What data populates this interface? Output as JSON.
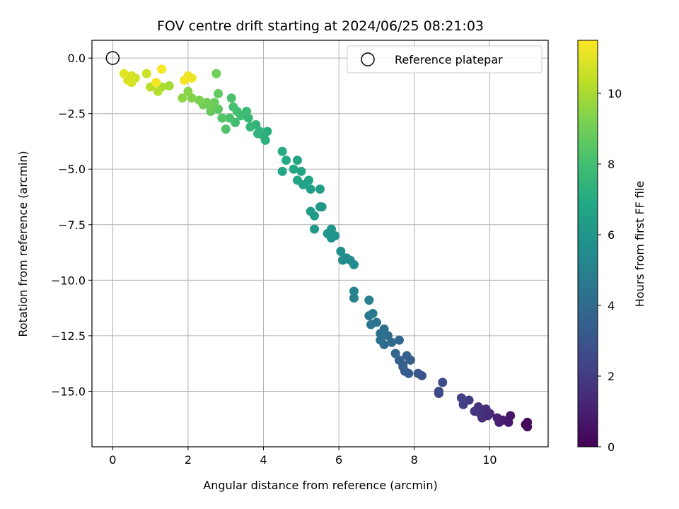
{
  "chart_data": {
    "type": "scatter",
    "title": "FOV centre drift starting at 2024/06/25 08:21:03",
    "xlabel": "Angular distance from reference (arcmin)",
    "ylabel": "Rotation from reference (arcmin)",
    "xlim": [
      -0.55,
      11.55
    ],
    "ylim": [
      -17.5,
      0.8
    ],
    "xticks": [
      0,
      2,
      4,
      6,
      8,
      10
    ],
    "xtick_labels": [
      "0",
      "2",
      "4",
      "6",
      "8",
      "10"
    ],
    "yticks": [
      0.0,
      -2.5,
      -5.0,
      -7.5,
      -10.0,
      -12.5,
      -15.0
    ],
    "ytick_labels": [
      "0.0",
      "−2.5",
      "−5.0",
      "−7.5",
      "−10.0",
      "−12.5",
      "−15.0"
    ],
    "grid": true,
    "legend": {
      "placement": "top-right",
      "entries": [
        "Reference platepar"
      ]
    },
    "reference_point": {
      "x": 0.0,
      "y": 0.0,
      "marker": "open-circle"
    },
    "colorbar": {
      "label": "Hours from first FF file",
      "colormap": "viridis",
      "range": [
        0,
        11.5
      ],
      "ticks": [
        0,
        2,
        4,
        6,
        8,
        10
      ],
      "tick_labels": [
        "0",
        "2",
        "4",
        "6",
        "8",
        "10"
      ]
    },
    "series": [
      {
        "note_colormap_by": "t",
        "points": [
          {
            "x": 0.3,
            "y": -0.7,
            "t": 11.0
          },
          {
            "x": 0.4,
            "y": -1.0,
            "t": 10.9
          },
          {
            "x": 0.5,
            "y": -1.1,
            "t": 10.8
          },
          {
            "x": 0.6,
            "y": -0.9,
            "t": 10.7
          },
          {
            "x": 0.5,
            "y": -0.8,
            "t": 10.8
          },
          {
            "x": 0.9,
            "y": -0.7,
            "t": 10.6
          },
          {
            "x": 1.0,
            "y": -1.3,
            "t": 10.3
          },
          {
            "x": 1.15,
            "y": -1.1,
            "t": 11.3
          },
          {
            "x": 1.2,
            "y": -1.5,
            "t": 10.2
          },
          {
            "x": 1.3,
            "y": -0.5,
            "t": 11.4
          },
          {
            "x": 1.3,
            "y": -1.3,
            "t": 10.1
          },
          {
            "x": 1.5,
            "y": -1.25,
            "t": 9.9
          },
          {
            "x": 1.9,
            "y": -1.0,
            "t": 11.3
          },
          {
            "x": 2.0,
            "y": -0.8,
            "t": 11.2
          },
          {
            "x": 2.1,
            "y": -0.9,
            "t": 11.2
          },
          {
            "x": 1.85,
            "y": -1.8,
            "t": 9.5
          },
          {
            "x": 2.0,
            "y": -1.5,
            "t": 9.4
          },
          {
            "x": 2.1,
            "y": -1.8,
            "t": 9.3
          },
          {
            "x": 2.3,
            "y": -1.9,
            "t": 9.2
          },
          {
            "x": 2.5,
            "y": -2.0,
            "t": 9.0
          },
          {
            "x": 2.6,
            "y": -2.2,
            "t": 8.9
          },
          {
            "x": 2.4,
            "y": -2.1,
            "t": 9.0
          },
          {
            "x": 2.7,
            "y": -2.0,
            "t": 8.8
          },
          {
            "x": 2.8,
            "y": -1.6,
            "t": 8.7
          },
          {
            "x": 2.75,
            "y": -0.7,
            "t": 9.0
          },
          {
            "x": 2.6,
            "y": -2.4,
            "t": 8.7
          },
          {
            "x": 2.8,
            "y": -2.3,
            "t": 8.6
          },
          {
            "x": 2.9,
            "y": -2.7,
            "t": 8.4
          },
          {
            "x": 3.0,
            "y": -3.2,
            "t": 8.3
          },
          {
            "x": 3.1,
            "y": -2.7,
            "t": 8.2
          },
          {
            "x": 3.15,
            "y": -1.8,
            "t": 8.2
          },
          {
            "x": 3.2,
            "y": -2.2,
            "t": 8.1
          },
          {
            "x": 3.3,
            "y": -2.4,
            "t": 8.0
          },
          {
            "x": 3.25,
            "y": -2.9,
            "t": 8.0
          },
          {
            "x": 3.4,
            "y": -2.6,
            "t": 7.9
          },
          {
            "x": 3.55,
            "y": -2.4,
            "t": 7.8
          },
          {
            "x": 3.6,
            "y": -2.7,
            "t": 7.7
          },
          {
            "x": 3.65,
            "y": -3.1,
            "t": 7.6
          },
          {
            "x": 3.8,
            "y": -3.0,
            "t": 7.5
          },
          {
            "x": 3.9,
            "y": -3.3,
            "t": 7.4
          },
          {
            "x": 4.0,
            "y": -3.5,
            "t": 7.3
          },
          {
            "x": 4.05,
            "y": -3.7,
            "t": 7.3
          },
          {
            "x": 4.1,
            "y": -3.3,
            "t": 7.2
          },
          {
            "x": 3.85,
            "y": -3.4,
            "t": 7.4
          },
          {
            "x": 4.5,
            "y": -4.2,
            "t": 7.0
          },
          {
            "x": 4.5,
            "y": -5.1,
            "t": 6.9
          },
          {
            "x": 4.6,
            "y": -4.6,
            "t": 6.9
          },
          {
            "x": 4.8,
            "y": -5.0,
            "t": 6.8
          },
          {
            "x": 4.9,
            "y": -4.6,
            "t": 6.8
          },
          {
            "x": 4.9,
            "y": -5.5,
            "t": 6.7
          },
          {
            "x": 5.0,
            "y": -5.1,
            "t": 6.7
          },
          {
            "x": 5.05,
            "y": -5.7,
            "t": 6.6
          },
          {
            "x": 5.2,
            "y": -5.5,
            "t": 6.6
          },
          {
            "x": 5.25,
            "y": -5.9,
            "t": 6.5
          },
          {
            "x": 5.5,
            "y": -5.9,
            "t": 6.4
          },
          {
            "x": 5.25,
            "y": -6.9,
            "t": 6.3
          },
          {
            "x": 5.35,
            "y": -7.1,
            "t": 6.3
          },
          {
            "x": 5.5,
            "y": -6.7,
            "t": 6.2
          },
          {
            "x": 5.55,
            "y": -6.7,
            "t": 6.2
          },
          {
            "x": 5.35,
            "y": -7.7,
            "t": 6.1
          },
          {
            "x": 5.7,
            "y": -7.9,
            "t": 6.0
          },
          {
            "x": 5.8,
            "y": -7.7,
            "t": 6.0
          },
          {
            "x": 5.8,
            "y": -8.1,
            "t": 5.9
          },
          {
            "x": 5.9,
            "y": -8.0,
            "t": 5.9
          },
          {
            "x": 6.05,
            "y": -8.7,
            "t": 5.7
          },
          {
            "x": 6.1,
            "y": -9.1,
            "t": 5.6
          },
          {
            "x": 6.3,
            "y": -9.1,
            "t": 5.5
          },
          {
            "x": 6.4,
            "y": -9.3,
            "t": 5.5
          },
          {
            "x": 6.2,
            "y": -9.0,
            "t": 5.6
          },
          {
            "x": 6.4,
            "y": -10.5,
            "t": 5.1
          },
          {
            "x": 6.4,
            "y": -10.8,
            "t": 5.0
          },
          {
            "x": 6.8,
            "y": -10.9,
            "t": 4.9
          },
          {
            "x": 6.8,
            "y": -11.6,
            "t": 4.6
          },
          {
            "x": 6.9,
            "y": -11.5,
            "t": 4.6
          },
          {
            "x": 6.85,
            "y": -12.0,
            "t": 4.5
          },
          {
            "x": 7.0,
            "y": -11.9,
            "t": 4.4
          },
          {
            "x": 7.1,
            "y": -12.4,
            "t": 4.3
          },
          {
            "x": 7.1,
            "y": -12.7,
            "t": 4.2
          },
          {
            "x": 7.2,
            "y": -12.2,
            "t": 4.2
          },
          {
            "x": 7.3,
            "y": -12.5,
            "t": 4.1
          },
          {
            "x": 7.2,
            "y": -12.9,
            "t": 4.1
          },
          {
            "x": 7.4,
            "y": -12.8,
            "t": 4.0
          },
          {
            "x": 7.5,
            "y": -13.3,
            "t": 3.8
          },
          {
            "x": 7.6,
            "y": -12.7,
            "t": 3.8
          },
          {
            "x": 7.6,
            "y": -13.6,
            "t": 3.6
          },
          {
            "x": 7.7,
            "y": -13.8,
            "t": 3.5
          },
          {
            "x": 7.75,
            "y": -14.1,
            "t": 3.4
          },
          {
            "x": 7.8,
            "y": -13.4,
            "t": 3.5
          },
          {
            "x": 7.9,
            "y": -13.6,
            "t": 3.4
          },
          {
            "x": 7.85,
            "y": -14.2,
            "t": 3.3
          },
          {
            "x": 8.1,
            "y": -14.2,
            "t": 3.1
          },
          {
            "x": 8.2,
            "y": -14.3,
            "t": 3.0
          },
          {
            "x": 7.7,
            "y": -13.9,
            "t": 3.5
          },
          {
            "x": 8.65,
            "y": -15.0,
            "t": 2.6
          },
          {
            "x": 8.75,
            "y": -14.6,
            "t": 2.6
          },
          {
            "x": 8.65,
            "y": -15.1,
            "t": 2.5
          },
          {
            "x": 9.25,
            "y": -15.3,
            "t": 2.2
          },
          {
            "x": 9.3,
            "y": -15.6,
            "t": 2.1
          },
          {
            "x": 9.45,
            "y": -15.4,
            "t": 2.0
          },
          {
            "x": 9.6,
            "y": -15.9,
            "t": 1.8
          },
          {
            "x": 9.7,
            "y": -15.7,
            "t": 1.7
          },
          {
            "x": 9.75,
            "y": -16.0,
            "t": 1.6
          },
          {
            "x": 9.8,
            "y": -16.2,
            "t": 1.5
          },
          {
            "x": 9.9,
            "y": -15.8,
            "t": 1.5
          },
          {
            "x": 9.95,
            "y": -16.1,
            "t": 1.4
          },
          {
            "x": 10.0,
            "y": -16.0,
            "t": 1.3
          },
          {
            "x": 10.2,
            "y": -16.2,
            "t": 1.1
          },
          {
            "x": 10.25,
            "y": -16.4,
            "t": 1.0
          },
          {
            "x": 10.35,
            "y": -16.3,
            "t": 0.9
          },
          {
            "x": 10.5,
            "y": -16.4,
            "t": 0.8
          },
          {
            "x": 10.55,
            "y": -16.1,
            "t": 0.7
          },
          {
            "x": 11.0,
            "y": -16.6,
            "t": 0.3
          },
          {
            "x": 11.0,
            "y": -16.4,
            "t": 0.2
          },
          {
            "x": 10.95,
            "y": -16.5,
            "t": 0.1
          }
        ]
      }
    ]
  }
}
